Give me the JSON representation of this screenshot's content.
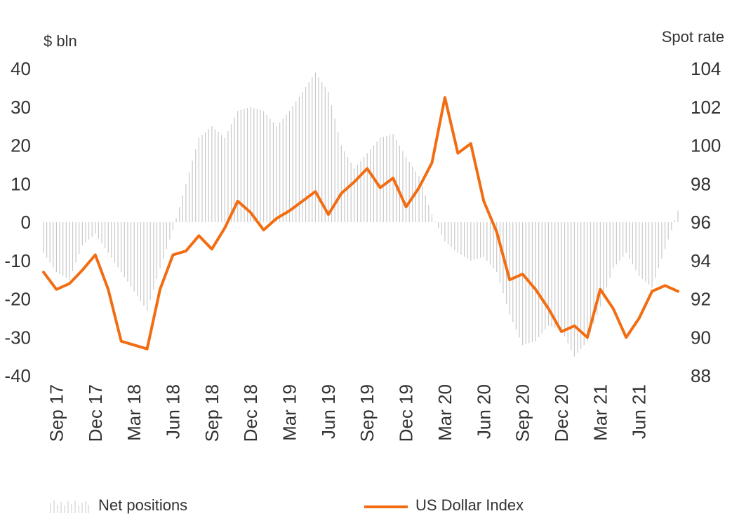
{
  "chart_data": {
    "type": "bar+line",
    "left_unit": "$ bln",
    "right_unit": "Spot rate",
    "left_ylim": [
      -40,
      40
    ],
    "left_ticks": [
      "40",
      "30",
      "20",
      "10",
      "0",
      "-10",
      "-20",
      "-30",
      "-40"
    ],
    "right_ylim": [
      88,
      104
    ],
    "right_ticks": [
      "104",
      "102",
      "100",
      "98",
      "96",
      "94",
      "92",
      "90",
      "88"
    ],
    "x_ticks": [
      "Sep 17",
      "Dec 17",
      "Mar 18",
      "Jun 18",
      "Sep 18",
      "Dec 18",
      "Mar 19",
      "Jun 19",
      "Sep 19",
      "Dec 19",
      "Mar 20",
      "Jun 20",
      "Sep 20",
      "Dec 20",
      "Mar 21",
      "Jun 21"
    ],
    "x_start": "2017-08",
    "x_end": "2021-09",
    "series": [
      {
        "name": "Net positions",
        "kind": "bar",
        "axis": "left",
        "color": "#c8c8c8",
        "points": [
          [
            "2017-08",
            -8
          ],
          [
            "2017-09",
            -13
          ],
          [
            "2017-10",
            -15
          ],
          [
            "2017-11",
            -6
          ],
          [
            "2017-12",
            -3
          ],
          [
            "2018-01",
            -8
          ],
          [
            "2018-02",
            -13
          ],
          [
            "2018-03",
            -18
          ],
          [
            "2018-04",
            -23
          ],
          [
            "2018-05",
            -12
          ],
          [
            "2018-06",
            -2
          ],
          [
            "2018-07",
            10
          ],
          [
            "2018-08",
            22
          ],
          [
            "2018-09",
            25
          ],
          [
            "2018-10",
            22
          ],
          [
            "2018-11",
            29
          ],
          [
            "2018-12",
            30
          ],
          [
            "2019-01",
            29
          ],
          [
            "2019-02",
            25
          ],
          [
            "2019-03",
            29
          ],
          [
            "2019-04",
            34
          ],
          [
            "2019-05",
            39
          ],
          [
            "2019-06",
            34
          ],
          [
            "2019-07",
            20
          ],
          [
            "2019-08",
            14
          ],
          [
            "2019-09",
            18
          ],
          [
            "2019-10",
            22
          ],
          [
            "2019-11",
            23
          ],
          [
            "2019-12",
            17
          ],
          [
            "2020-01",
            12
          ],
          [
            "2020-02",
            2
          ],
          [
            "2020-03",
            -5
          ],
          [
            "2020-04",
            -8
          ],
          [
            "2020-05",
            -10
          ],
          [
            "2020-06",
            -9
          ],
          [
            "2020-07",
            -13
          ],
          [
            "2020-08",
            -24
          ],
          [
            "2020-09",
            -32
          ],
          [
            "2020-10",
            -31
          ],
          [
            "2020-11",
            -27
          ],
          [
            "2020-12",
            -28
          ],
          [
            "2021-01",
            -35
          ],
          [
            "2021-02",
            -31
          ],
          [
            "2021-03",
            -22
          ],
          [
            "2021-04",
            -12
          ],
          [
            "2021-05",
            -8
          ],
          [
            "2021-06",
            -14
          ],
          [
            "2021-07",
            -17
          ],
          [
            "2021-08",
            -7
          ],
          [
            "2021-09",
            3
          ]
        ]
      },
      {
        "name": "US Dollar Index",
        "kind": "line",
        "axis": "right",
        "color": "#f26d12",
        "points": [
          [
            "2017-08",
            93.4
          ],
          [
            "2017-09",
            92.5
          ],
          [
            "2017-10",
            92.8
          ],
          [
            "2017-11",
            93.5
          ],
          [
            "2017-12",
            94.3
          ],
          [
            "2018-01",
            92.5
          ],
          [
            "2018-02",
            89.8
          ],
          [
            "2018-03",
            89.6
          ],
          [
            "2018-04",
            89.4
          ],
          [
            "2018-05",
            92.5
          ],
          [
            "2018-06",
            94.3
          ],
          [
            "2018-07",
            94.5
          ],
          [
            "2018-08",
            95.3
          ],
          [
            "2018-09",
            94.6
          ],
          [
            "2018-10",
            95.7
          ],
          [
            "2018-11",
            97.1
          ],
          [
            "2018-12",
            96.5
          ],
          [
            "2019-01",
            95.6
          ],
          [
            "2019-02",
            96.2
          ],
          [
            "2019-03",
            96.6
          ],
          [
            "2019-04",
            97.1
          ],
          [
            "2019-05",
            97.6
          ],
          [
            "2019-06",
            96.4
          ],
          [
            "2019-07",
            97.5
          ],
          [
            "2019-08",
            98.1
          ],
          [
            "2019-09",
            98.8
          ],
          [
            "2019-10",
            97.8
          ],
          [
            "2019-11",
            98.3
          ],
          [
            "2019-12",
            96.8
          ],
          [
            "2020-01",
            97.8
          ],
          [
            "2020-02",
            99.1
          ],
          [
            "2020-03",
            102.5
          ],
          [
            "2020-04",
            99.6
          ],
          [
            "2020-05",
            100.1
          ],
          [
            "2020-06",
            97.1
          ],
          [
            "2020-07",
            95.5
          ],
          [
            "2020-08",
            93.0
          ],
          [
            "2020-09",
            93.3
          ],
          [
            "2020-10",
            92.5
          ],
          [
            "2020-11",
            91.5
          ],
          [
            "2020-12",
            90.3
          ],
          [
            "2021-01",
            90.6
          ],
          [
            "2021-02",
            90.0
          ],
          [
            "2021-03",
            92.5
          ],
          [
            "2021-04",
            91.5
          ],
          [
            "2021-05",
            90.0
          ],
          [
            "2021-06",
            91.0
          ],
          [
            "2021-07",
            92.4
          ],
          [
            "2021-08",
            92.7
          ],
          [
            "2021-09",
            92.4
          ]
        ]
      }
    ],
    "legend_position": "bottom"
  }
}
